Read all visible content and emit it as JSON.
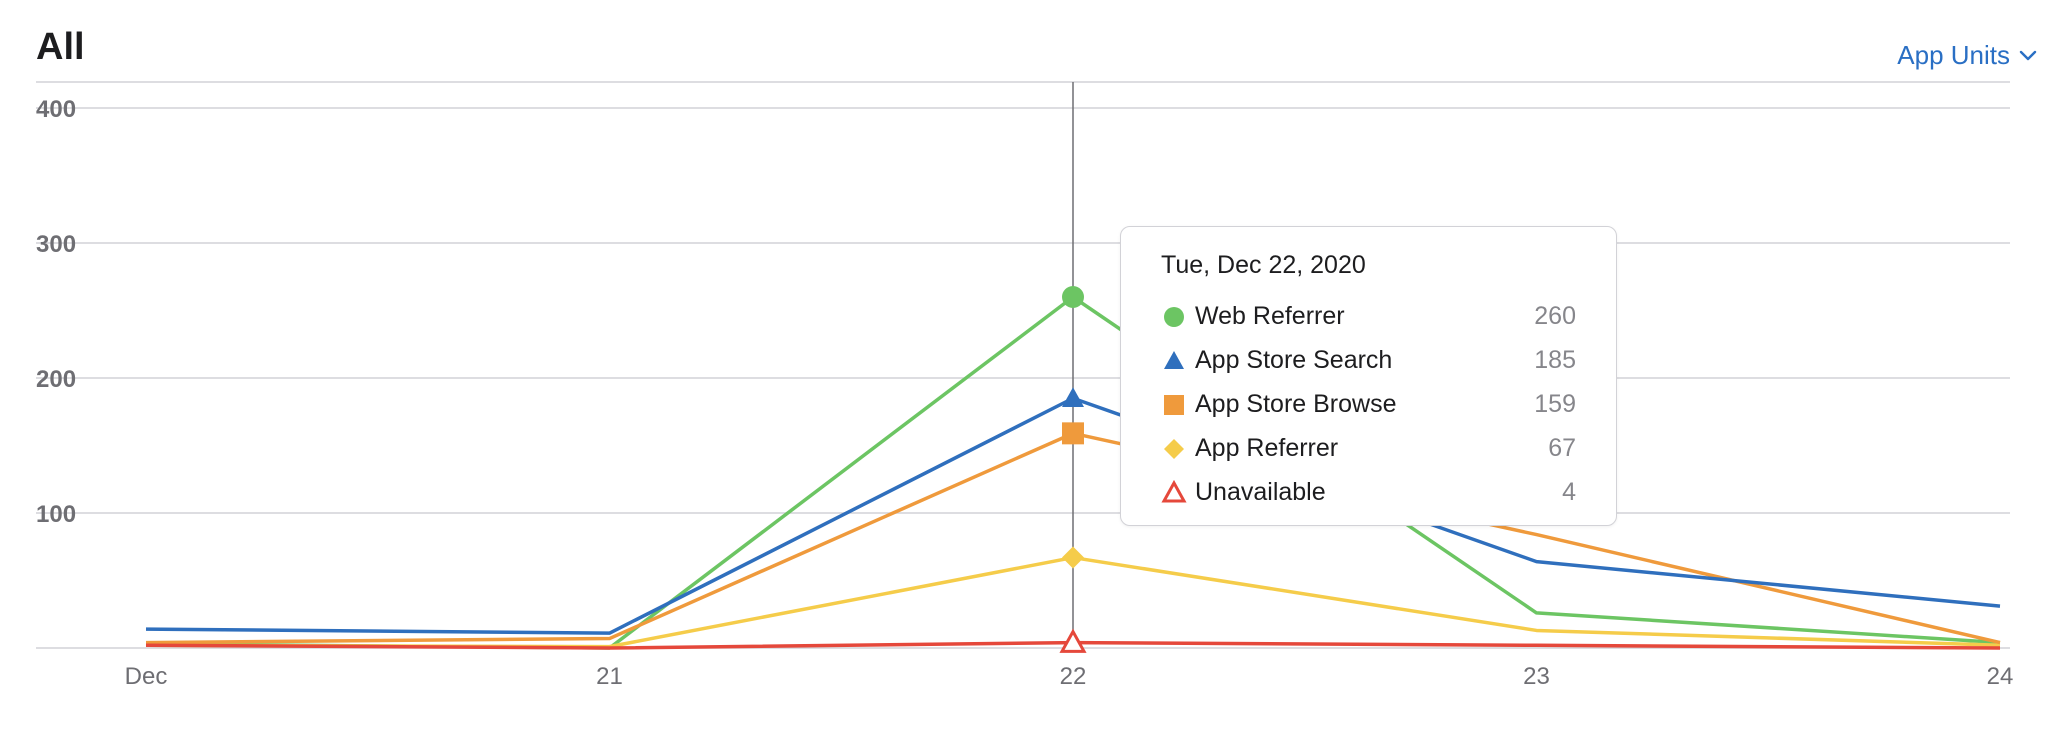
{
  "header": {
    "title": "All",
    "metric_selector": "App Units",
    "chevron_icon": "chevron-down-icon"
  },
  "colors": {
    "web_referrer": "#6cc563",
    "app_store_search": "#2f6fbd",
    "app_store_browse": "#ef9a3c",
    "app_referrer": "#f5cc4a",
    "unavailable": "#e5483b",
    "grid": "#d2d2d7",
    "cursor": "#6e6e73",
    "axis_text": "#6e6e73"
  },
  "chart_data": {
    "type": "line",
    "x": [
      "Dec",
      "21",
      "22",
      "23",
      "24"
    ],
    "ylim": [
      0,
      400
    ],
    "yticks": [
      100,
      200,
      300,
      400
    ],
    "grid": true,
    "hover_index": 2,
    "series": [
      {
        "name": "Web Referrer",
        "color": "#6cc563",
        "marker": "circle",
        "values": [
          3,
          0,
          260,
          26,
          4
        ]
      },
      {
        "name": "App Store Search",
        "color": "#2f6fbd",
        "marker": "triangle",
        "values": [
          14,
          11,
          185,
          64,
          31
        ]
      },
      {
        "name": "App Store Browse",
        "color": "#ef9a3c",
        "marker": "square",
        "values": [
          4,
          7,
          159,
          84,
          4
        ]
      },
      {
        "name": "App Referrer",
        "color": "#f5cc4a",
        "marker": "diamond",
        "values": [
          2,
          1,
          67,
          13,
          2
        ]
      },
      {
        "name": "Unavailable",
        "color": "#e5483b",
        "marker": "triangle-open",
        "values": [
          2,
          0,
          4,
          2,
          0
        ]
      }
    ]
  },
  "tooltip": {
    "date": "Tue, Dec 22, 2020",
    "rows": [
      {
        "name": "Web Referrer",
        "value": "260",
        "marker": "circle",
        "color": "#6cc563"
      },
      {
        "name": "App Store Search",
        "value": "185",
        "marker": "triangle",
        "color": "#2f6fbd"
      },
      {
        "name": "App Store Browse",
        "value": "159",
        "marker": "square",
        "color": "#ef9a3c"
      },
      {
        "name": "App Referrer",
        "value": "67",
        "marker": "diamond",
        "color": "#f5cc4a"
      },
      {
        "name": "Unavailable",
        "value": "4",
        "marker": "triangle-open",
        "color": "#e5483b"
      }
    ]
  }
}
